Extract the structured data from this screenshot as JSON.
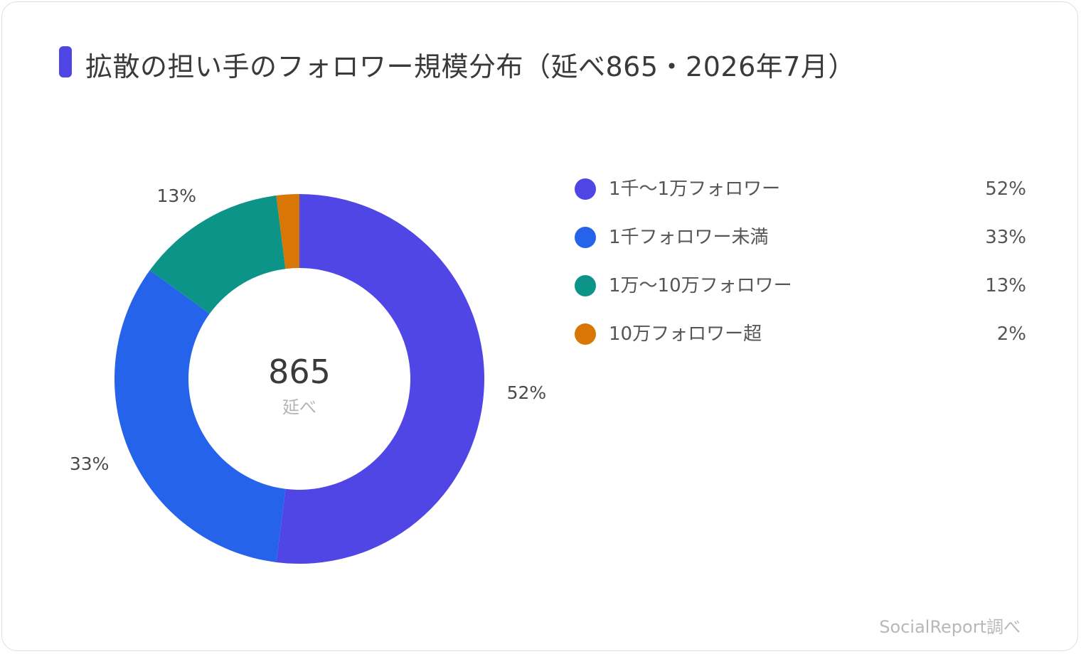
{
  "title": "拡散の担い手のフォロワー規模分布（延べ865・2026年7月）",
  "accent_color": "#4f46e5",
  "center": {
    "value": "865",
    "unit": "延べ"
  },
  "source": "SocialReport調べ",
  "chart_data": {
    "type": "pie",
    "variant": "donut",
    "title": "拡散の担い手のフォロワー規模分布（延べ865・2026年7月）",
    "start_angle": "12 o'clock, clockwise",
    "categories": [
      "1千〜1万フォロワー",
      "1千フォロワー未満",
      "1万〜10万フォロワー",
      "10万フォロワー超"
    ],
    "values": [
      52,
      33,
      13,
      2
    ],
    "labels": [
      "52%",
      "33%",
      "13%",
      "2%"
    ],
    "colors": [
      "#4f46e5",
      "#2563eb",
      "#0d9488",
      "#d97706"
    ],
    "legend_position": "right",
    "total": 865
  }
}
